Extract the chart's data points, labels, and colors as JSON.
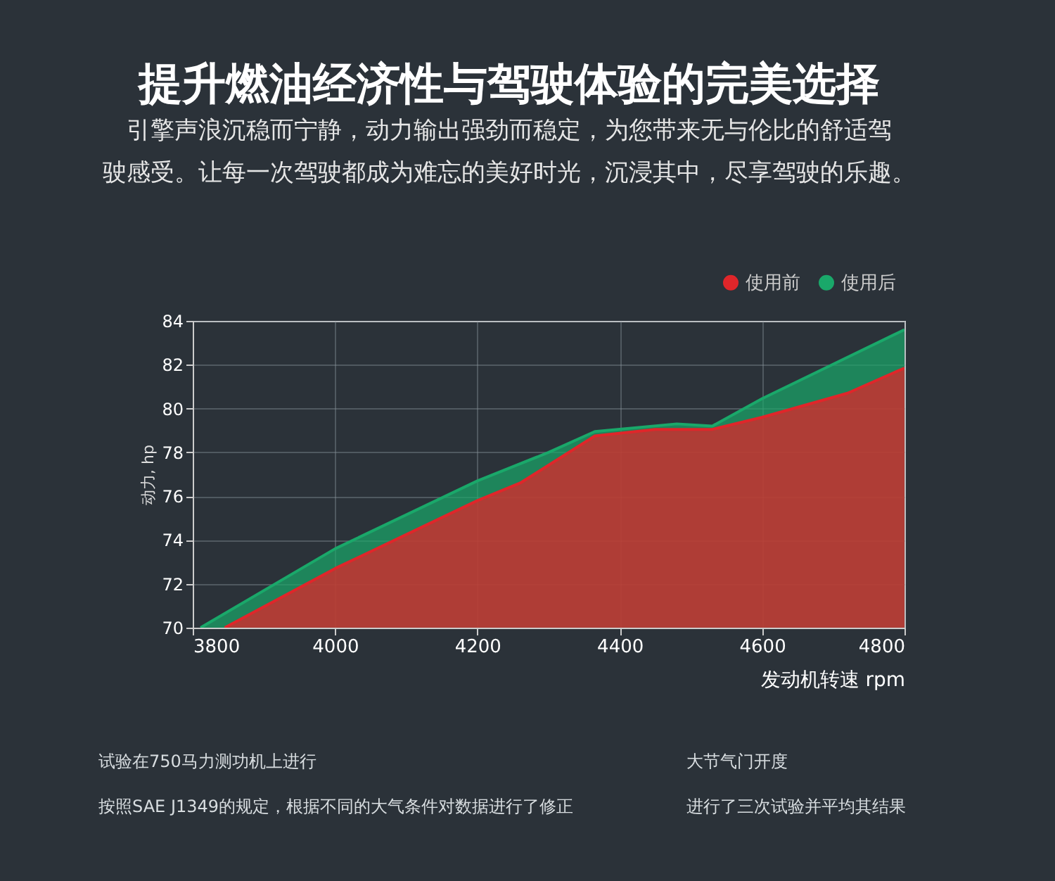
{
  "chart_data": {
    "type": "area",
    "title": "提升燃油经济性与驾驶体验的完美选择",
    "subtitle": [
      "引擎声浪沉稳而宁静，动力输出强劲而稳定，为您带来无与伦比的舒适驾",
      "驶感受。让每一次驾驶都成为难忘的美好时光，沉浸其中，尽享驾驶的乐趣。"
    ],
    "xlabel": "发动机转速 rpm",
    "ylabel": "动力, hp",
    "series": [
      {
        "name": "使用前",
        "color": "#e0262a",
        "x": [
          3845,
          4000,
          4200,
          4260,
          4365,
          4450,
          4530,
          4600,
          4720,
          4800
        ],
        "values": [
          70,
          72.7,
          75.8,
          76.6,
          78.75,
          79.05,
          79.05,
          79.6,
          80.7,
          81.85
        ]
      },
      {
        "name": "使用后",
        "color": "#1aa86a",
        "x": [
          3811,
          4000,
          4200,
          4300,
          4365,
          4480,
          4530,
          4600,
          4800
        ],
        "values": [
          70,
          73.6,
          76.7,
          78,
          78.95,
          79.3,
          79.2,
          80.45,
          83.6
        ]
      }
    ],
    "xlim": [
      3800,
      4800
    ],
    "xticks": [
      3800,
      4000,
      4200,
      4400,
      4600,
      4800
    ],
    "ylim": [
      70,
      84
    ],
    "yticks": [
      70,
      72,
      74,
      76,
      78,
      80,
      82,
      84
    ],
    "grid": true,
    "legend": "top right",
    "annotations": [
      "试验在750马力测功机上进行",
      "大节气门开度",
      "按照SAE J1349的规定，根据不同的大气条件对数据进行了修正",
      "进行了三次试验并平均其结果"
    ]
  }
}
